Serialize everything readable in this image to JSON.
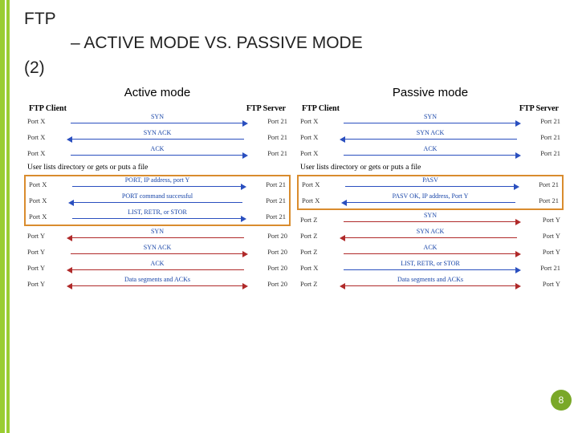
{
  "colors": {
    "accent": "#9acd32",
    "accent_dark": "#7aa828",
    "box": "#d98c2e",
    "arrow_blue": "#2a4fbf",
    "arrow_red": "#b02a2a",
    "badge": "#7aa828"
  },
  "title": {
    "top": "FTP",
    "sub": "– ACTIVE MODE VS. PASSIVE MODE",
    "num": "(2)"
  },
  "page_number": "8",
  "columns": [
    {
      "title": "Active mode",
      "client_label": "FTP Client",
      "server_label": "FTP Server",
      "groups": [
        {
          "boxed": false,
          "rows": [
            {
              "l": "Port X",
              "r": "Port 21",
              "label": "SYN",
              "dir": "r",
              "color": "blue"
            },
            {
              "l": "Port X",
              "r": "Port 21",
              "label": "SYN ACK",
              "dir": "l",
              "color": "blue"
            },
            {
              "l": "Port X",
              "r": "Port 21",
              "label": "ACK",
              "dir": "r",
              "color": "blue"
            }
          ]
        },
        {
          "note": "User lists directory or gets or puts a file"
        },
        {
          "boxed": true,
          "rows": [
            {
              "l": "Port X",
              "r": "Port 21",
              "label": "PORT, IP address, port Y",
              "dir": "r",
              "color": "blue"
            },
            {
              "l": "Port X",
              "r": "Port 21",
              "label": "PORT command successful",
              "dir": "l",
              "color": "blue"
            },
            {
              "l": "Port X",
              "r": "Port 21",
              "label": "LIST, RETR, or STOR",
              "dir": "r",
              "color": "blue"
            }
          ]
        },
        {
          "boxed": false,
          "rows": [
            {
              "l": "Port Y",
              "r": "Port 20",
              "label": "SYN",
              "dir": "l",
              "color": "red"
            },
            {
              "l": "Port Y",
              "r": "Port 20",
              "label": "SYN ACK",
              "dir": "r",
              "color": "red"
            },
            {
              "l": "Port Y",
              "r": "Port 20",
              "label": "ACK",
              "dir": "l",
              "color": "red"
            },
            {
              "l": "Port Y",
              "r": "Port 20",
              "label": "Data segments and ACKs",
              "dir": "both",
              "color": "red"
            }
          ]
        }
      ]
    },
    {
      "title": "Passive mode",
      "client_label": "FTP Client",
      "server_label": "FTP Server",
      "groups": [
        {
          "boxed": false,
          "rows": [
            {
              "l": "Port X",
              "r": "Port 21",
              "label": "SYN",
              "dir": "r",
              "color": "blue"
            },
            {
              "l": "Port X",
              "r": "Port 21",
              "label": "SYN ACK",
              "dir": "l",
              "color": "blue"
            },
            {
              "l": "Port X",
              "r": "Port 21",
              "label": "ACK",
              "dir": "r",
              "color": "blue"
            }
          ]
        },
        {
          "note": "User lists directory or gets or puts a file"
        },
        {
          "boxed": true,
          "rows": [
            {
              "l": "Port X",
              "r": "Port 21",
              "label": "PASV",
              "dir": "r",
              "color": "blue"
            },
            {
              "l": "Port X",
              "r": "Port 21",
              "label": "PASV OK, IP address, Port Y",
              "dir": "l",
              "color": "blue"
            }
          ]
        },
        {
          "boxed": false,
          "rows": [
            {
              "l": "Port Z",
              "r": "Port Y",
              "label": "SYN",
              "dir": "r",
              "color": "red"
            },
            {
              "l": "Port Z",
              "r": "Port Y",
              "label": "SYN ACK",
              "dir": "l",
              "color": "red"
            },
            {
              "l": "Port Z",
              "r": "Port Y",
              "label": "ACK",
              "dir": "r",
              "color": "red"
            }
          ]
        },
        {
          "boxed": false,
          "rows": [
            {
              "l": "Port X",
              "r": "Port 21",
              "label": "LIST, RETR, or STOR",
              "dir": "r",
              "color": "blue"
            }
          ]
        },
        {
          "boxed": false,
          "rows": [
            {
              "l": "Port Z",
              "r": "Port Y",
              "label": "Data segments and ACKs",
              "dir": "both",
              "color": "red"
            }
          ]
        }
      ]
    }
  ]
}
